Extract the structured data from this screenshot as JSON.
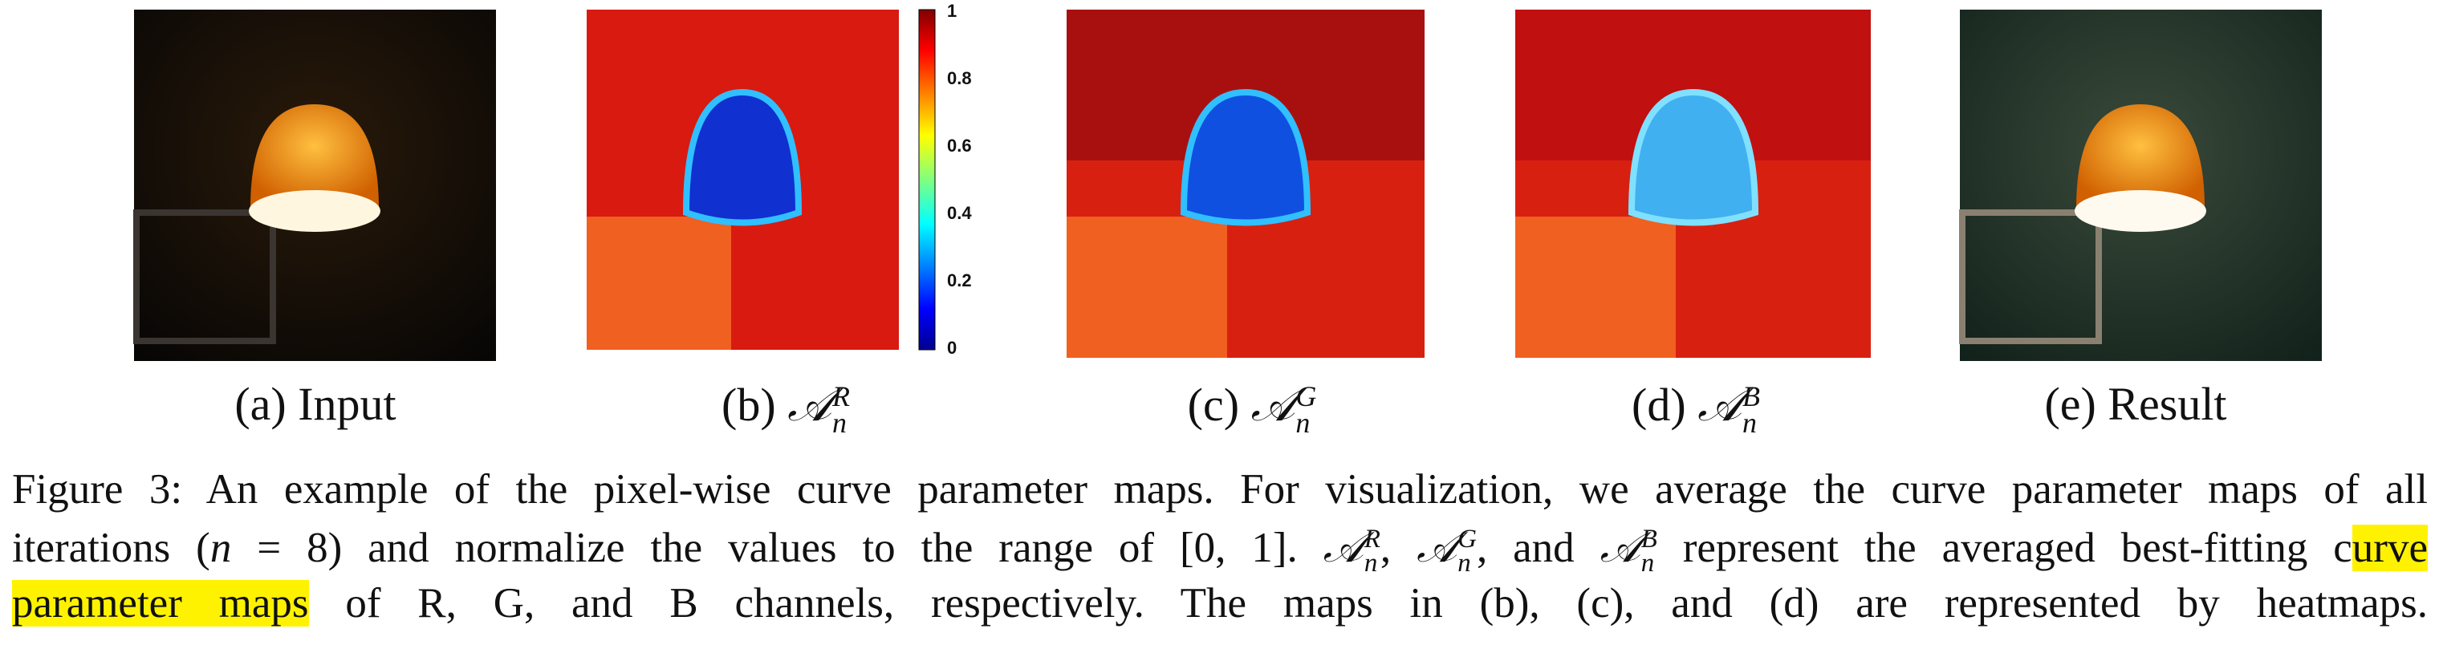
{
  "figure": {
    "panels": [
      {
        "prefix": "(a)",
        "text": "Input"
      },
      {
        "prefix": "(b)",
        "symbol": "𝒜",
        "sub": "n",
        "sup": "R"
      },
      {
        "prefix": "(c)",
        "symbol": "𝒜",
        "sub": "n",
        "sup": "G"
      },
      {
        "prefix": "(d)",
        "symbol": "𝒜",
        "sub": "n",
        "sup": "B"
      },
      {
        "prefix": "(e)",
        "text": "Result"
      }
    ],
    "colorbar_ticks": [
      "1",
      "0.8",
      "0.6",
      "0.4",
      "0.2",
      "0"
    ],
    "caption_lines": [
      [
        {
          "text": "Figure 3: An example of the pixel-wise curve parameter maps. For visualization, we average the curve parameter maps of all"
        }
      ],
      [
        {
          "text": "iterations ("
        },
        {
          "italic": "n"
        },
        {
          "text": " = 8) and normalize the values to the range of [0, 1]. "
        },
        {
          "symbol": "𝒜",
          "sub": "n",
          "sup": "R"
        },
        {
          "text": ", "
        },
        {
          "symbol": "𝒜",
          "sub": "n",
          "sup": "G"
        },
        {
          "text": ", and "
        },
        {
          "symbol": "𝒜",
          "sub": "n",
          "sup": "B"
        },
        {
          "text": " represent the averaged best-fitting c"
        },
        {
          "highlight": "urve"
        }
      ],
      [
        {
          "highlight": "parameter maps"
        },
        {
          "text": " of R, G, and B channels, respectively. The maps in (b), (c), and (d) are represented by heatmaps."
        }
      ]
    ]
  }
}
